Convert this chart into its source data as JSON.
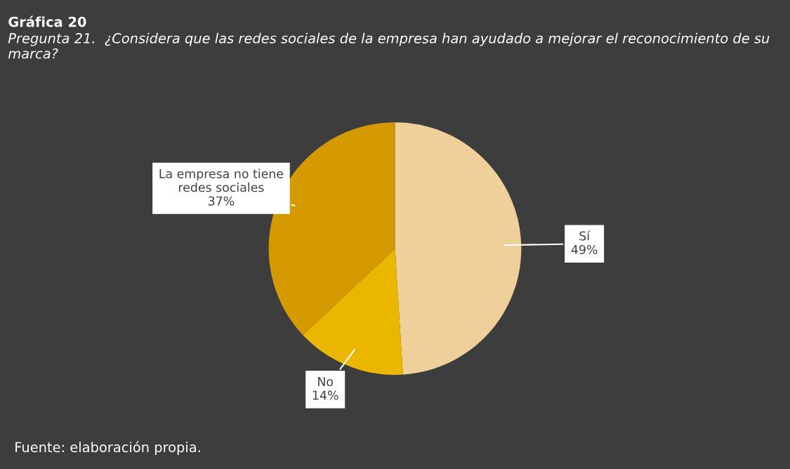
{
  "chart_data": {
    "type": "pie",
    "title": "Gráfica 20",
    "subtitle": "Pregunta 21.  ¿Considera que las redes sociales de la empresa han ayudado a mejorar el reconocimiento de su marca?",
    "categories": [
      "Sí",
      "No",
      "La empresa no tiene redes sociales"
    ],
    "values": [
      49,
      14,
      37
    ],
    "colors": [
      "#efcf9a",
      "#eab600",
      "#d49a00"
    ],
    "value_labels": [
      "49%",
      "14%",
      "37%"
    ],
    "legend": false,
    "annotations": [
      "Fuente: elaboración propia."
    ]
  }
}
